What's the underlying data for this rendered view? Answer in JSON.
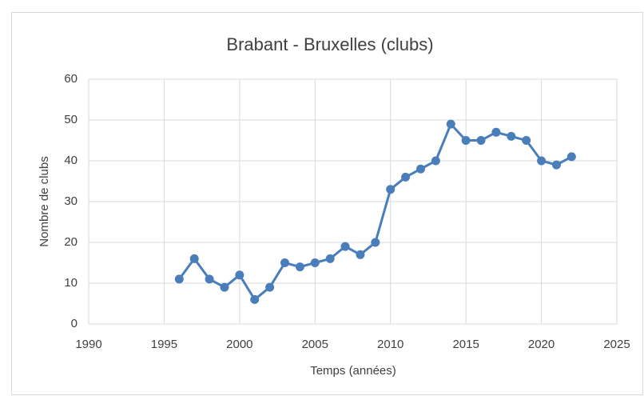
{
  "chart_data": {
    "type": "line",
    "title": "Brabant - Bruxelles (clubs)",
    "x_label": "Temps (années)",
    "y_label": "Nombre de clubs",
    "x": [
      1996,
      1997,
      1998,
      1999,
      2000,
      2001,
      2002,
      2003,
      2004,
      2005,
      2006,
      2007,
      2008,
      2009,
      2010,
      2011,
      2012,
      2013,
      2014,
      2015,
      2016,
      2017,
      2018,
      2019,
      2020,
      2021,
      2022
    ],
    "series": [
      {
        "name": "Nombre de clubs",
        "color": "#4a7ebb",
        "values": [
          11,
          16,
          11,
          9,
          12,
          6,
          9,
          15,
          14,
          15,
          16,
          19,
          17,
          20,
          33,
          36,
          38,
          40,
          49,
          45,
          45,
          47,
          46,
          45,
          40,
          39,
          41
        ]
      }
    ],
    "xlim": [
      1990,
      2025
    ],
    "xticks": [
      1990,
      1995,
      2000,
      2005,
      2010,
      2015,
      2020,
      2025
    ],
    "ylim": [
      0,
      60
    ],
    "yticks": [
      0,
      10,
      20,
      30,
      40,
      50,
      60
    ],
    "grid": true
  }
}
